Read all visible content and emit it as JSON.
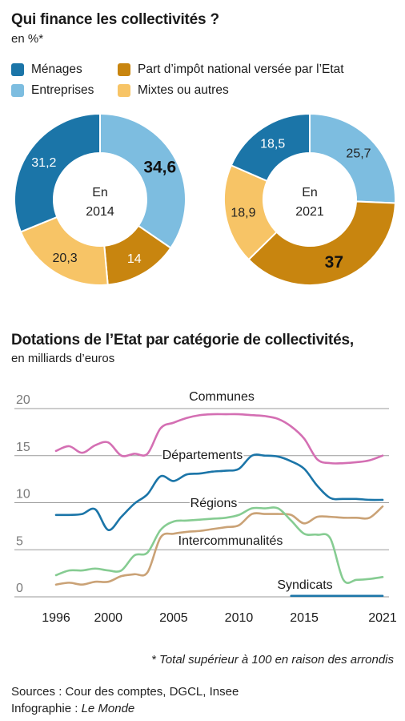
{
  "donut_section": {
    "title": "Qui finance les collectivités ?",
    "subtitle": "en %*",
    "legend": [
      {
        "label": "Ménages",
        "color": "#1b75a8"
      },
      {
        "label": "Entreprises",
        "color": "#7dbde0"
      },
      {
        "label": "Part d’impôt national versée par l’Etat",
        "color": "#c8850f"
      },
      {
        "label": "Mixtes ou autres",
        "color": "#f7c466"
      }
    ]
  },
  "line_section": {
    "title": "Dotations de l’Etat par catégorie de collectivités,",
    "subtitle": "en milliards d’euros"
  },
  "footnote": "* Total supérieur à 100 en raison des arrondis",
  "sources": {
    "line1": "Sources : Cour des comptes, DGCL, Insee",
    "line2_prefix": "Infographie : ",
    "line2_brand": "Le Monde"
  },
  "chart_data": [
    {
      "type": "pie",
      "center_label": [
        "En",
        "2014"
      ],
      "slices": [
        {
          "category": "Entreprises",
          "value": 34.6,
          "label": "34,6",
          "bold": true
        },
        {
          "category": "Part d’impôt national versée par l’Etat",
          "value": 14,
          "label": "14",
          "bold": false
        },
        {
          "category": "Mixtes ou autres",
          "value": 20.3,
          "label": "20,3",
          "bold": false
        },
        {
          "category": "Ménages",
          "value": 31.2,
          "label": "31,2",
          "bold": false
        }
      ]
    },
    {
      "type": "pie",
      "center_label": [
        "En",
        "2021"
      ],
      "slices": [
        {
          "category": "Entreprises",
          "value": 25.7,
          "label": "25,7",
          "bold": false
        },
        {
          "category": "Part d’impôt national versée par l’Etat",
          "value": 37,
          "label": "37",
          "bold": true
        },
        {
          "category": "Mixtes ou autres",
          "value": 18.9,
          "label": "18,9",
          "bold": false
        },
        {
          "category": "Ménages",
          "value": 18.5,
          "label": "18,5",
          "bold": false
        }
      ]
    },
    {
      "type": "line",
      "ylim": [
        0,
        20
      ],
      "yticks": [
        0,
        5,
        10,
        15,
        20
      ],
      "xlim": [
        1996,
        2021
      ],
      "xticks": [
        1996,
        2000,
        2005,
        2010,
        2015,
        2021
      ],
      "grid": true,
      "series": [
        {
          "name": "Communes",
          "color": "#d46fb3",
          "x": [
            1996,
            1997,
            1998,
            1999,
            2000,
            2001,
            2002,
            2003,
            2004,
            2005,
            2006,
            2007,
            2008,
            2009,
            2010,
            2011,
            2012,
            2013,
            2014,
            2015,
            2016,
            2017,
            2018,
            2019,
            2020,
            2021
          ],
          "y": [
            15.5,
            16.0,
            15.3,
            16.1,
            16.4,
            15.0,
            15.2,
            15.2,
            17.9,
            18.5,
            19.0,
            19.3,
            19.4,
            19.4,
            19.4,
            19.3,
            19.2,
            18.9,
            18.1,
            16.8,
            14.6,
            14.2,
            14.2,
            14.3,
            14.5,
            15.0
          ]
        },
        {
          "name": "Départements",
          "color": "#1b75a8",
          "x": [
            1996,
            1997,
            1998,
            1999,
            2000,
            2001,
            2002,
            2003,
            2004,
            2005,
            2006,
            2007,
            2008,
            2009,
            2010,
            2011,
            2012,
            2013,
            2014,
            2015,
            2016,
            2017,
            2018,
            2019,
            2020,
            2021
          ],
          "y": [
            8.7,
            8.7,
            8.8,
            9.3,
            7.1,
            8.5,
            9.9,
            10.9,
            12.8,
            12.3,
            13.0,
            13.1,
            13.3,
            13.4,
            13.6,
            15.0,
            15.0,
            14.9,
            14.4,
            13.6,
            11.8,
            10.5,
            10.4,
            10.4,
            10.3,
            10.3
          ]
        },
        {
          "name": "Régions",
          "color": "#caa276",
          "x": [
            1996,
            1997,
            1998,
            1999,
            2000,
            2001,
            2002,
            2003,
            2004,
            2005,
            2006,
            2007,
            2008,
            2009,
            2010,
            2011,
            2012,
            2013,
            2014,
            2015,
            2016,
            2017,
            2018,
            2019,
            2020,
            2021
          ],
          "y": [
            1.3,
            1.5,
            1.3,
            1.6,
            1.6,
            2.2,
            2.4,
            2.6,
            6.3,
            6.7,
            6.9,
            7.0,
            7.2,
            7.4,
            7.6,
            8.8,
            8.8,
            8.8,
            8.7,
            7.8,
            8.5,
            8.5,
            8.4,
            8.4,
            8.4,
            9.6
          ]
        },
        {
          "name": "Intercommunalités",
          "color": "#86cc92",
          "x": [
            1996,
            1997,
            1998,
            1999,
            2000,
            2001,
            2002,
            2003,
            2004,
            2005,
            2006,
            2007,
            2008,
            2009,
            2010,
            2011,
            2012,
            2013,
            2014,
            2015,
            2016,
            2017,
            2018,
            2019,
            2020,
            2021
          ],
          "y": [
            2.3,
            2.8,
            2.8,
            3.0,
            2.8,
            2.8,
            4.4,
            4.7,
            7.1,
            8.0,
            8.1,
            8.2,
            8.3,
            8.4,
            8.7,
            9.4,
            9.4,
            9.4,
            8.1,
            6.7,
            6.6,
            6.2,
            1.8,
            1.8,
            1.9,
            2.1
          ]
        },
        {
          "name": "Syndicats",
          "color": "#1b75a8",
          "x": [
            2014,
            2015,
            2016,
            2017,
            2018,
            2019,
            2020,
            2021
          ],
          "y": [
            0.1,
            0.1,
            0.1,
            0.1,
            0.1,
            0.1,
            0.1,
            0.1
          ]
        }
      ]
    }
  ]
}
